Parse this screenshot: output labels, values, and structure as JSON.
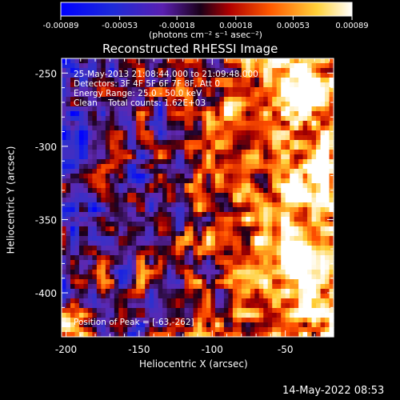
{
  "colorbar": {
    "ticks": [
      "-0.00089",
      "-0.00053",
      "-0.00018",
      "0.00018",
      "0.00053",
      "0.00089"
    ],
    "unit_label": "(photons cm⁻² s⁻¹ asec⁻²)"
  },
  "header": {
    "title": "Reconstructed RHESSI Image"
  },
  "overlay": {
    "time_range": "25-May-2013 21:08:44.000 to 21:09:48.000",
    "detectors": "Detectors: 3F 4F 5F 6F 7F 8F, Att 0",
    "energy": "Energy Range: 25.0 - 50.0 keV",
    "clean": "Clean    Total counts: 1.62E+03",
    "peak": "Position of Peak = [-63,-262]"
  },
  "footer": {
    "timestamp": "14-May-2022 08:53"
  },
  "chart_data": {
    "type": "heatmap",
    "title": "Reconstructed RHESSI Image",
    "xlabel": "Heliocentric X (arcsec)",
    "ylabel": "Heliocentric Y (arcsec)",
    "xlim": [
      -203,
      -17
    ],
    "ylim": [
      -430,
      -240
    ],
    "x_ticks": [
      -200,
      -150,
      -100,
      -50
    ],
    "y_ticks": [
      -250,
      -300,
      -350,
      -400
    ],
    "x_tick_labels": [
      "-200",
      "-150",
      "-100",
      "-50"
    ],
    "y_tick_labels": [
      "-250",
      "-300",
      "-350",
      "-400"
    ],
    "value_range": [
      -0.00089,
      0.00089
    ],
    "colormap": "blue-purple-red-yellow-white",
    "peak": {
      "x": -63,
      "y": -262
    }
  }
}
